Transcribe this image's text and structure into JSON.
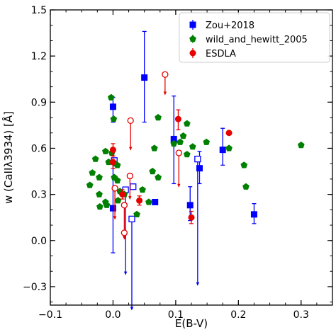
{
  "chart_data": {
    "type": "scatter",
    "xlabel": "E(B-V)",
    "ylabel": "w (CaIIλ3934) [Å]",
    "xlim": [
      -0.1,
      0.35
    ],
    "ylim": [
      -0.42,
      1.5
    ],
    "x_ticks": [
      -0.1,
      0.0,
      0.1,
      0.2,
      0.3
    ],
    "x_tick_labels": [
      "−0.1",
      "0.0",
      "0.1",
      "0.2",
      "0.3"
    ],
    "y_ticks": [
      -0.3,
      0.0,
      0.3,
      0.6,
      0.9,
      1.2,
      1.5
    ],
    "y_tick_labels": [
      "−0.3",
      "0.0",
      "0.3",
      "0.6",
      "0.9",
      "1.2",
      "1.5"
    ],
    "grid": false,
    "legend_position": "top-right",
    "legend": [
      "Zou+2018",
      "wild_and_hewitt_2005",
      "ESDLA"
    ],
    "series": [
      {
        "name": "Zou+2018",
        "color": "#0000ff",
        "marker": "square",
        "points": [
          {
            "x": 0.0,
            "y": 0.87,
            "yerr_lo": 0.1,
            "yerr_hi": 0.06,
            "filled": true
          },
          {
            "x": 0.0,
            "y": 0.21,
            "yerr_lo": 0.29,
            "yerr_hi": 0.32,
            "filled": true
          },
          {
            "x": 0.05,
            "y": 1.06,
            "yerr_lo": 0.29,
            "yerr_hi": 0.3,
            "filled": true
          },
          {
            "x": 0.067,
            "y": 0.25,
            "yerr_lo": 0.0,
            "yerr_hi": 0.0,
            "filled": true
          },
          {
            "x": 0.097,
            "y": 0.66,
            "yerr_lo": 0.29,
            "yerr_hi": 0.28,
            "filled": true
          },
          {
            "x": 0.123,
            "y": 0.23,
            "yerr_lo": 0.1,
            "yerr_hi": 0.12,
            "filled": true
          },
          {
            "x": 0.138,
            "y": 0.47,
            "yerr_lo": 0.1,
            "yerr_hi": 0.11,
            "filled": true
          },
          {
            "x": 0.175,
            "y": 0.59,
            "yerr_lo": 0.1,
            "yerr_hi": 0.14,
            "filled": true
          },
          {
            "x": 0.225,
            "y": 0.17,
            "yerr_lo": 0.06,
            "yerr_hi": 0.07,
            "filled": true
          },
          {
            "x": 0.002,
            "y": 0.52,
            "yerr_lo": 0.0,
            "yerr_hi": 0.0,
            "filled": false
          },
          {
            "x": 0.02,
            "y": 0.33,
            "yerr_lo": 0.55,
            "yerr_hi": 0.0,
            "filled": false
          },
          {
            "x": 0.032,
            "y": 0.35,
            "yerr_lo": 0.0,
            "yerr_hi": 0.0,
            "filled": false
          },
          {
            "x": 0.03,
            "y": 0.14,
            "yerr_lo": 0.59,
            "yerr_hi": 0.0,
            "filled": false
          },
          {
            "x": 0.135,
            "y": 0.53,
            "yerr_lo": 0.82,
            "yerr_hi": 0.0,
            "filled": false
          }
        ]
      },
      {
        "name": "wild_and_hewitt_2005",
        "color": "#008000",
        "marker": "pentagon",
        "points": [
          {
            "x": -0.003,
            "y": 0.93
          },
          {
            "x": 0.001,
            "y": 0.79
          },
          {
            "x": -0.028,
            "y": 0.53
          },
          {
            "x": -0.012,
            "y": 0.58
          },
          {
            "x": -0.002,
            "y": 0.57
          },
          {
            "x": -0.007,
            "y": 0.51
          },
          {
            "x": 0.003,
            "y": 0.5
          },
          {
            "x": 0.007,
            "y": 0.49
          },
          {
            "x": -0.033,
            "y": 0.44
          },
          {
            "x": -0.022,
            "y": 0.41
          },
          {
            "x": 0.002,
            "y": 0.41
          },
          {
            "x": 0.007,
            "y": 0.39
          },
          {
            "x": -0.037,
            "y": 0.36
          },
          {
            "x": 0.011,
            "y": 0.32
          },
          {
            "x": 0.018,
            "y": 0.3
          },
          {
            "x": -0.022,
            "y": 0.3
          },
          {
            "x": -0.012,
            "y": 0.25
          },
          {
            "x": -0.021,
            "y": 0.22
          },
          {
            "x": -0.01,
            "y": 0.23
          },
          {
            "x": 0.008,
            "y": 0.26
          },
          {
            "x": 0.038,
            "y": 0.17
          },
          {
            "x": 0.047,
            "y": 0.33
          },
          {
            "x": 0.057,
            "y": 0.25
          },
          {
            "x": 0.063,
            "y": 0.45
          },
          {
            "x": 0.072,
            "y": 0.41
          },
          {
            "x": 0.066,
            "y": 0.6
          },
          {
            "x": 0.072,
            "y": 0.8
          },
          {
            "x": 0.097,
            "y": 0.63
          },
          {
            "x": 0.107,
            "y": 0.64
          },
          {
            "x": 0.112,
            "y": 0.68
          },
          {
            "x": 0.118,
            "y": 0.76
          },
          {
            "x": 0.118,
            "y": 0.56
          },
          {
            "x": 0.127,
            "y": 0.61
          },
          {
            "x": 0.149,
            "y": 0.64
          },
          {
            "x": 0.185,
            "y": 0.6
          },
          {
            "x": 0.209,
            "y": 0.49
          },
          {
            "x": 0.212,
            "y": 0.35
          },
          {
            "x": 0.3,
            "y": 0.62
          }
        ]
      },
      {
        "name": "ESDLA",
        "color": "#e60000",
        "marker": "circle",
        "points": [
          {
            "x": 0.0,
            "y": 0.59,
            "yerr_lo": 0.04,
            "yerr_hi": 0.04,
            "filled": true
          },
          {
            "x": 0.0,
            "y": 0.51,
            "yerr_lo": 0.04,
            "yerr_hi": 0.04,
            "filled": true
          },
          {
            "x": 0.015,
            "y": 0.3,
            "yerr_lo": 0.03,
            "yerr_hi": 0.03,
            "filled": true
          },
          {
            "x": 0.042,
            "y": 0.26,
            "yerr_lo": 0.03,
            "yerr_hi": 0.03,
            "filled": true
          },
          {
            "x": 0.104,
            "y": 0.79,
            "yerr_lo": 0.07,
            "yerr_hi": 0.06,
            "filled": true
          },
          {
            "x": 0.125,
            "y": 0.15,
            "yerr_lo": 0.04,
            "yerr_hi": 0.04,
            "filled": true
          },
          {
            "x": 0.185,
            "y": 0.7,
            "yerr_lo": 0.0,
            "yerr_hi": 0.0,
            "filled": true
          },
          {
            "x": 0.018,
            "y": 0.23,
            "yerr_lo": 0.22,
            "yerr_hi": 0.0,
            "filled": false
          },
          {
            "x": 0.003,
            "y": 0.34,
            "yerr_lo": 0.2,
            "yerr_hi": 0.0,
            "filled": false
          },
          {
            "x": 0.018,
            "y": 0.05,
            "yerr_lo": 0.0,
            "yerr_hi": 0.0,
            "filled": false
          },
          {
            "x": 0.028,
            "y": 0.78,
            "yerr_lo": 0.19,
            "yerr_hi": 0.0,
            "filled": false
          },
          {
            "x": 0.027,
            "y": 0.42,
            "yerr_lo": 0.15,
            "yerr_hi": 0.0,
            "filled": false
          },
          {
            "x": 0.083,
            "y": 1.08,
            "yerr_lo": 0.13,
            "yerr_hi": 0.0,
            "filled": false
          },
          {
            "x": 0.105,
            "y": 0.57,
            "yerr_lo": 0.22,
            "yerr_hi": 0.0,
            "filled": false
          }
        ]
      }
    ]
  }
}
